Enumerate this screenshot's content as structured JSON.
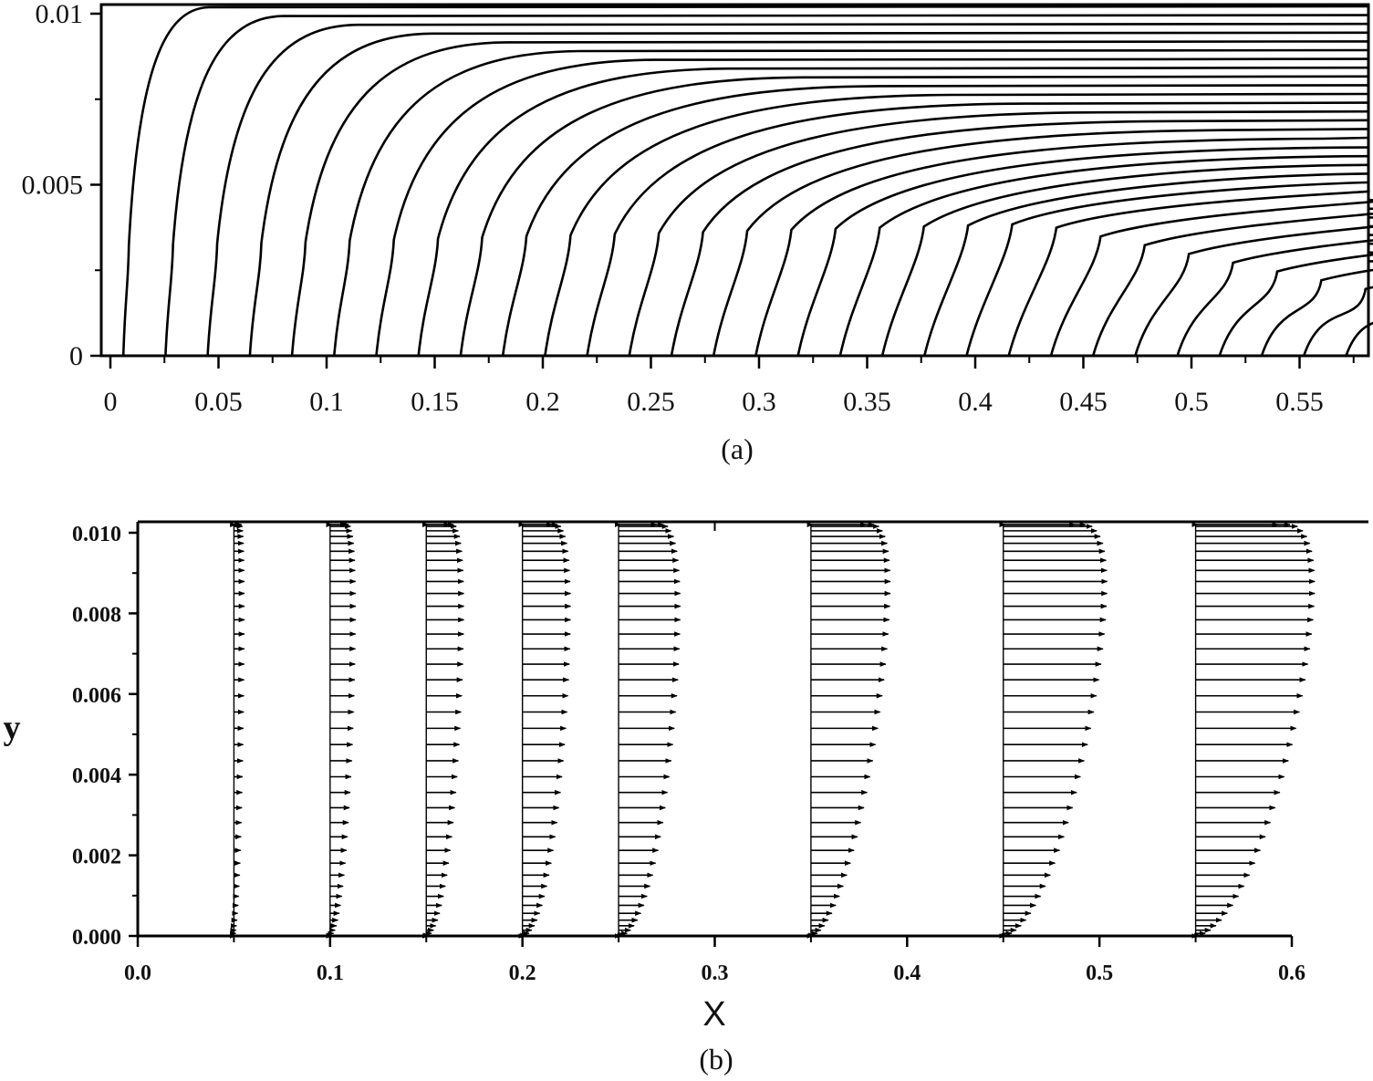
{
  "chart_data": [
    {
      "type": "line",
      "panel": "a",
      "caption": "(a)",
      "xlabel": "",
      "ylabel": "",
      "xlim": [
        0,
        0.58
      ],
      "ylim": [
        0,
        0.0103
      ],
      "x_ticks": [
        "0",
        "0.05",
        "0.1",
        "0.15",
        "0.2",
        "0.25",
        "0.3",
        "0.35",
        "0.4",
        "0.45",
        "0.5",
        "0.55"
      ],
      "y_ticks": [
        "0",
        "0.005",
        "0.01"
      ],
      "grid": false,
      "curve_count": 30,
      "curve_spacing_x": 0.0195,
      "curve_first_x": 0.006
    },
    {
      "type": "scatter",
      "panel": "b",
      "caption": "(b)",
      "xlabel": "X",
      "ylabel": "y",
      "xlim": [
        0,
        0.6
      ],
      "ylim": [
        0,
        0.0103
      ],
      "x_ticks": [
        "0.0",
        "0.1",
        "0.2",
        "0.3",
        "0.4",
        "0.5",
        "0.6"
      ],
      "y_ticks": [
        "0.000",
        "0.002",
        "0.004",
        "0.006",
        "0.008",
        "0.010"
      ],
      "grid": false,
      "profiles": [
        {
          "x": 0.05,
          "max_length": 0.007
        },
        {
          "x": 0.1,
          "max_length": 0.017
        },
        {
          "x": 0.15,
          "max_length": 0.025
        },
        {
          "x": 0.2,
          "max_length": 0.032
        },
        {
          "x": 0.25,
          "max_length": 0.041
        },
        {
          "x": 0.35,
          "max_length": 0.052
        },
        {
          "x": 0.45,
          "max_length": 0.068
        },
        {
          "x": 0.55,
          "max_length": 0.078
        }
      ]
    }
  ]
}
